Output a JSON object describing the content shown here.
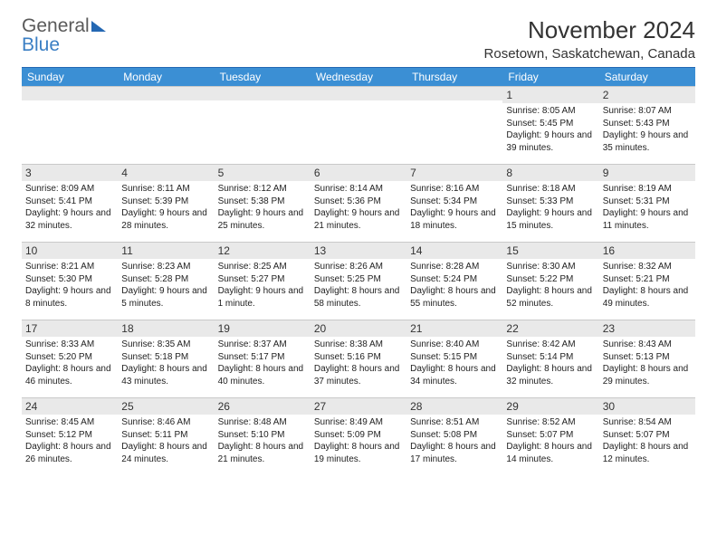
{
  "logo": {
    "line1": "General",
    "line2": "Blue"
  },
  "title": "November 2024",
  "subtitle": "Rosetown, Saskatchewan, Canada",
  "colors": {
    "header_bg": "#3b8fd4",
    "header_border": "#2468b3",
    "daynum_bg": "#e9e9e9",
    "text": "#222222"
  },
  "day_names": [
    "Sunday",
    "Monday",
    "Tuesday",
    "Wednesday",
    "Thursday",
    "Friday",
    "Saturday"
  ],
  "weeks": [
    [
      {
        "day": ""
      },
      {
        "day": ""
      },
      {
        "day": ""
      },
      {
        "day": ""
      },
      {
        "day": ""
      },
      {
        "day": "1",
        "sunrise": "Sunrise: 8:05 AM",
        "sunset": "Sunset: 5:45 PM",
        "daylight": "Daylight: 9 hours and 39 minutes."
      },
      {
        "day": "2",
        "sunrise": "Sunrise: 8:07 AM",
        "sunset": "Sunset: 5:43 PM",
        "daylight": "Daylight: 9 hours and 35 minutes."
      }
    ],
    [
      {
        "day": "3",
        "sunrise": "Sunrise: 8:09 AM",
        "sunset": "Sunset: 5:41 PM",
        "daylight": "Daylight: 9 hours and 32 minutes."
      },
      {
        "day": "4",
        "sunrise": "Sunrise: 8:11 AM",
        "sunset": "Sunset: 5:39 PM",
        "daylight": "Daylight: 9 hours and 28 minutes."
      },
      {
        "day": "5",
        "sunrise": "Sunrise: 8:12 AM",
        "sunset": "Sunset: 5:38 PM",
        "daylight": "Daylight: 9 hours and 25 minutes."
      },
      {
        "day": "6",
        "sunrise": "Sunrise: 8:14 AM",
        "sunset": "Sunset: 5:36 PM",
        "daylight": "Daylight: 9 hours and 21 minutes."
      },
      {
        "day": "7",
        "sunrise": "Sunrise: 8:16 AM",
        "sunset": "Sunset: 5:34 PM",
        "daylight": "Daylight: 9 hours and 18 minutes."
      },
      {
        "day": "8",
        "sunrise": "Sunrise: 8:18 AM",
        "sunset": "Sunset: 5:33 PM",
        "daylight": "Daylight: 9 hours and 15 minutes."
      },
      {
        "day": "9",
        "sunrise": "Sunrise: 8:19 AM",
        "sunset": "Sunset: 5:31 PM",
        "daylight": "Daylight: 9 hours and 11 minutes."
      }
    ],
    [
      {
        "day": "10",
        "sunrise": "Sunrise: 8:21 AM",
        "sunset": "Sunset: 5:30 PM",
        "daylight": "Daylight: 9 hours and 8 minutes."
      },
      {
        "day": "11",
        "sunrise": "Sunrise: 8:23 AM",
        "sunset": "Sunset: 5:28 PM",
        "daylight": "Daylight: 9 hours and 5 minutes."
      },
      {
        "day": "12",
        "sunrise": "Sunrise: 8:25 AM",
        "sunset": "Sunset: 5:27 PM",
        "daylight": "Daylight: 9 hours and 1 minute."
      },
      {
        "day": "13",
        "sunrise": "Sunrise: 8:26 AM",
        "sunset": "Sunset: 5:25 PM",
        "daylight": "Daylight: 8 hours and 58 minutes."
      },
      {
        "day": "14",
        "sunrise": "Sunrise: 8:28 AM",
        "sunset": "Sunset: 5:24 PM",
        "daylight": "Daylight: 8 hours and 55 minutes."
      },
      {
        "day": "15",
        "sunrise": "Sunrise: 8:30 AM",
        "sunset": "Sunset: 5:22 PM",
        "daylight": "Daylight: 8 hours and 52 minutes."
      },
      {
        "day": "16",
        "sunrise": "Sunrise: 8:32 AM",
        "sunset": "Sunset: 5:21 PM",
        "daylight": "Daylight: 8 hours and 49 minutes."
      }
    ],
    [
      {
        "day": "17",
        "sunrise": "Sunrise: 8:33 AM",
        "sunset": "Sunset: 5:20 PM",
        "daylight": "Daylight: 8 hours and 46 minutes."
      },
      {
        "day": "18",
        "sunrise": "Sunrise: 8:35 AM",
        "sunset": "Sunset: 5:18 PM",
        "daylight": "Daylight: 8 hours and 43 minutes."
      },
      {
        "day": "19",
        "sunrise": "Sunrise: 8:37 AM",
        "sunset": "Sunset: 5:17 PM",
        "daylight": "Daylight: 8 hours and 40 minutes."
      },
      {
        "day": "20",
        "sunrise": "Sunrise: 8:38 AM",
        "sunset": "Sunset: 5:16 PM",
        "daylight": "Daylight: 8 hours and 37 minutes."
      },
      {
        "day": "21",
        "sunrise": "Sunrise: 8:40 AM",
        "sunset": "Sunset: 5:15 PM",
        "daylight": "Daylight: 8 hours and 34 minutes."
      },
      {
        "day": "22",
        "sunrise": "Sunrise: 8:42 AM",
        "sunset": "Sunset: 5:14 PM",
        "daylight": "Daylight: 8 hours and 32 minutes."
      },
      {
        "day": "23",
        "sunrise": "Sunrise: 8:43 AM",
        "sunset": "Sunset: 5:13 PM",
        "daylight": "Daylight: 8 hours and 29 minutes."
      }
    ],
    [
      {
        "day": "24",
        "sunrise": "Sunrise: 8:45 AM",
        "sunset": "Sunset: 5:12 PM",
        "daylight": "Daylight: 8 hours and 26 minutes."
      },
      {
        "day": "25",
        "sunrise": "Sunrise: 8:46 AM",
        "sunset": "Sunset: 5:11 PM",
        "daylight": "Daylight: 8 hours and 24 minutes."
      },
      {
        "day": "26",
        "sunrise": "Sunrise: 8:48 AM",
        "sunset": "Sunset: 5:10 PM",
        "daylight": "Daylight: 8 hours and 21 minutes."
      },
      {
        "day": "27",
        "sunrise": "Sunrise: 8:49 AM",
        "sunset": "Sunset: 5:09 PM",
        "daylight": "Daylight: 8 hours and 19 minutes."
      },
      {
        "day": "28",
        "sunrise": "Sunrise: 8:51 AM",
        "sunset": "Sunset: 5:08 PM",
        "daylight": "Daylight: 8 hours and 17 minutes."
      },
      {
        "day": "29",
        "sunrise": "Sunrise: 8:52 AM",
        "sunset": "Sunset: 5:07 PM",
        "daylight": "Daylight: 8 hours and 14 minutes."
      },
      {
        "day": "30",
        "sunrise": "Sunrise: 8:54 AM",
        "sunset": "Sunset: 5:07 PM",
        "daylight": "Daylight: 8 hours and 12 minutes."
      }
    ]
  ]
}
